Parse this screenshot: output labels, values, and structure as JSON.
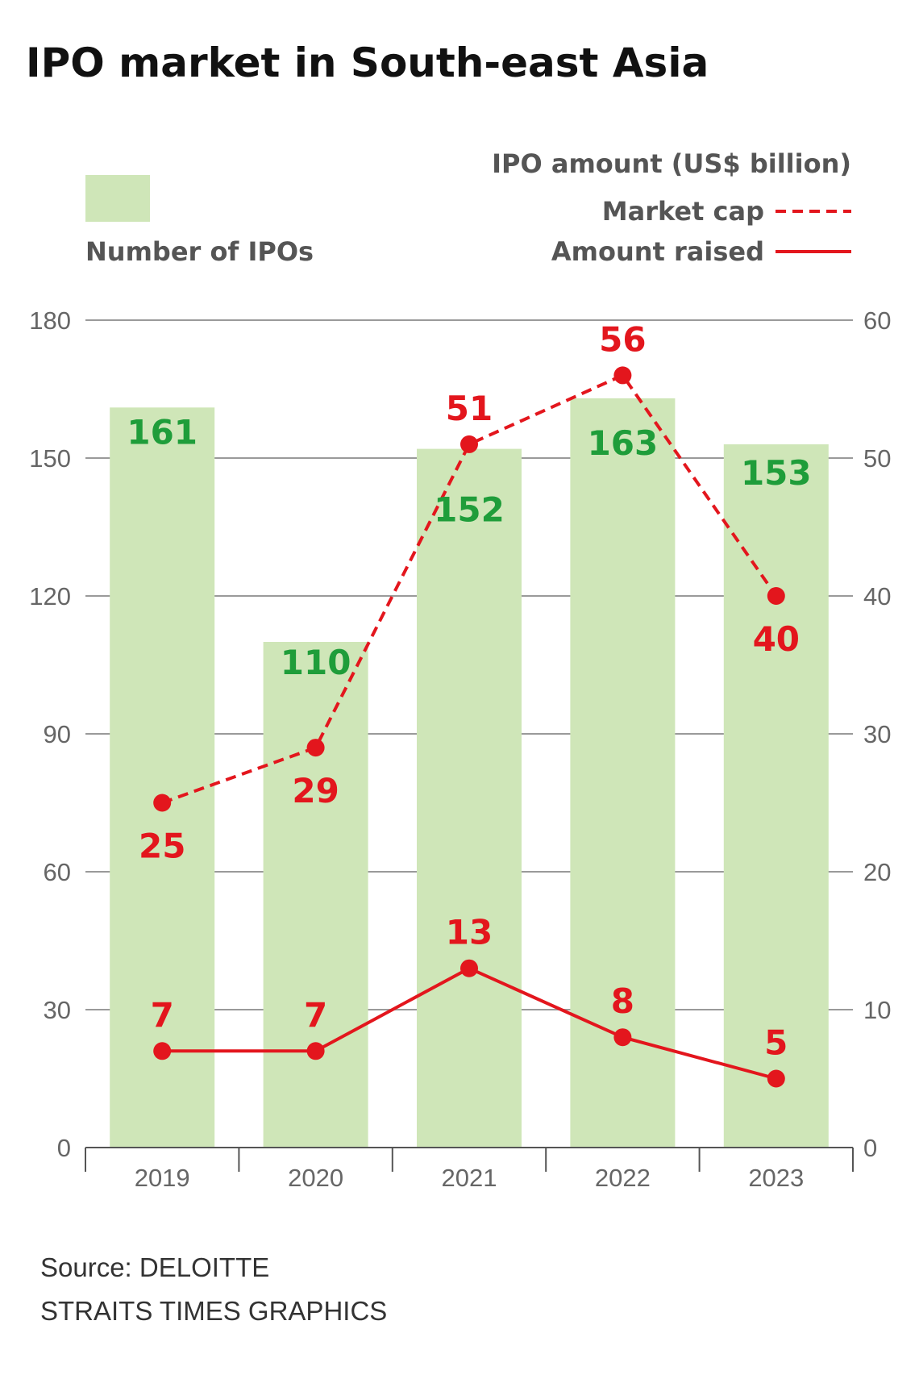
{
  "chart_data": {
    "type": "bar",
    "title": "IPO market in South-east Asia",
    "categories": [
      "2019",
      "2020",
      "2021",
      "2022",
      "2023"
    ],
    "bar_series": {
      "name": "Number of IPOs",
      "values": [
        161,
        110,
        152,
        163,
        153
      ],
      "color": "#cfe6b8",
      "label_color": "#1f9d3a"
    },
    "line_series_title": "IPO amount (US$ billion)",
    "line_series": [
      {
        "name": "Market cap",
        "values": [
          25,
          29,
          51,
          56,
          40
        ],
        "style": "dashed",
        "color": "#e3161d"
      },
      {
        "name": "Amount raised",
        "values": [
          7,
          7,
          13,
          8,
          5
        ],
        "style": "solid",
        "color": "#e3161d"
      }
    ],
    "left_axis": {
      "ylim": [
        0,
        180
      ],
      "ticks": [
        "0",
        "30",
        "60",
        "90",
        "120",
        "150",
        "180"
      ]
    },
    "right_axis": {
      "ylim": [
        0,
        60
      ],
      "ticks": [
        "0",
        "10",
        "20",
        "30",
        "40",
        "50",
        "60"
      ]
    },
    "grid": true,
    "legend_placement": "top"
  },
  "footer": {
    "source": "Source: DELOITTE",
    "credit": "STRAITS TIMES GRAPHICS"
  }
}
